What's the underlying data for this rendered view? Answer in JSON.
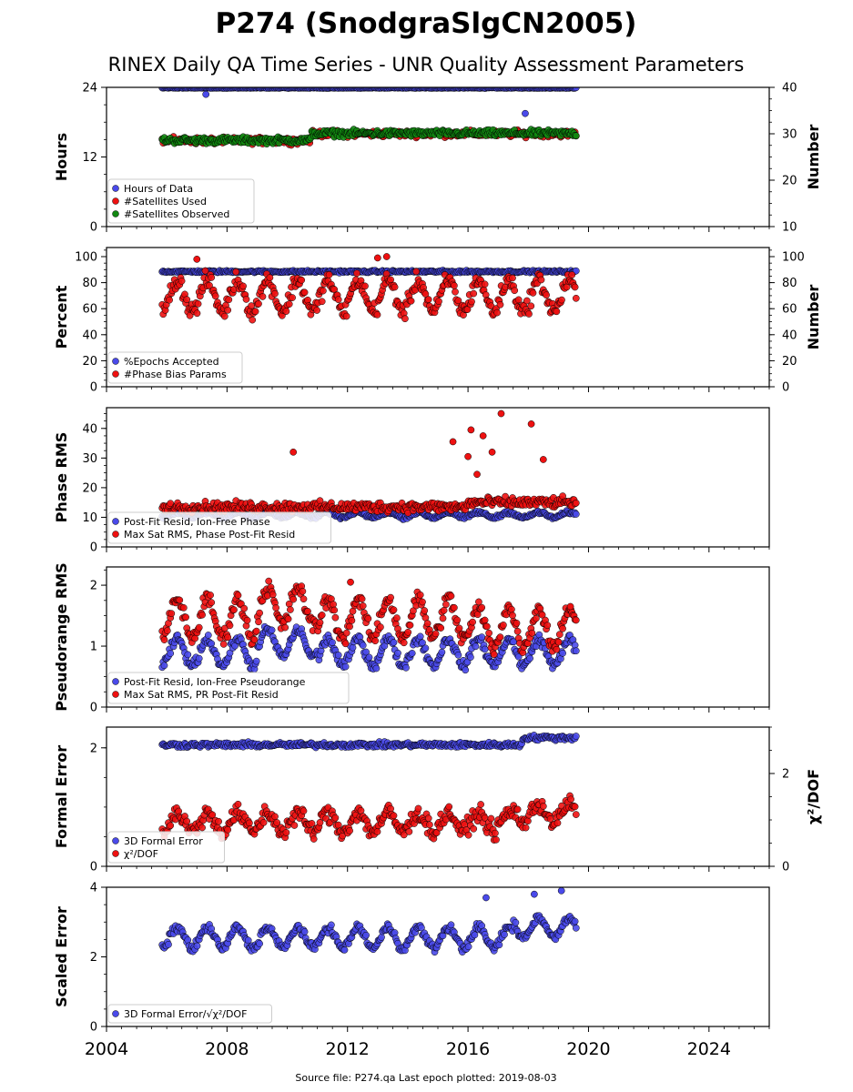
{
  "title": "P274 (SnodgraSlgCN2005)",
  "subtitle": "RINEX Daily QA Time Series - UNR Quality Assessment Parameters",
  "footer": "Source file: P274.qa Last epoch plotted: 2019-08-03",
  "chart_data": [
    {
      "type": "scatter",
      "ylabel": "Hours",
      "ylim": [
        0,
        24
      ],
      "yticks": [
        0,
        12,
        24
      ],
      "y2label": "Number",
      "y2lim": [
        10,
        40
      ],
      "y2ticks": [
        10,
        20,
        30,
        40
      ],
      "legend": "lower-left",
      "series": [
        {
          "name": "Hours of Data",
          "color": "#4a4aea",
          "axis": "left",
          "model": "hours",
          "outliers": [
            [
              2007.3,
              22.8
            ],
            [
              2017.9,
              19.5
            ]
          ]
        },
        {
          "name": "#Satellites Used",
          "color": "#ee1111",
          "axis": "right",
          "model": "satused"
        },
        {
          "name": "#Satellites Observed",
          "color": "#118811",
          "axis": "right",
          "model": "satobs"
        }
      ]
    },
    {
      "type": "scatter",
      "ylabel": "Percent",
      "ylim": [
        0,
        107
      ],
      "yticks": [
        0,
        20,
        40,
        60,
        80,
        100
      ],
      "y2label": "Number",
      "y2lim": [
        0,
        107
      ],
      "y2ticks": [
        0,
        20,
        40,
        60,
        80,
        100
      ],
      "legend": "lower-left",
      "series": [
        {
          "name": "%Epochs Accepted",
          "color": "#4a4aea",
          "axis": "left",
          "model": "epochs"
        },
        {
          "name": "#Phase Bias Params",
          "color": "#ee1111",
          "axis": "right",
          "model": "bias",
          "outliers": [
            [
              2007.0,
              98
            ],
            [
              2013.0,
              99
            ],
            [
              2013.3,
              100
            ]
          ]
        }
      ]
    },
    {
      "type": "scatter",
      "ylabel": "Phase RMS",
      "ylim": [
        0,
        47
      ],
      "yticks": [
        0,
        10,
        20,
        30,
        40
      ],
      "legend": "lower-left",
      "series": [
        {
          "name": "Post-Fit Resid, Ion-Free Phase",
          "color": "#4a4aea",
          "axis": "left",
          "model": "phase"
        },
        {
          "name": "Max Sat RMS, Phase Post-Fit Resid",
          "color": "#ee1111",
          "axis": "left",
          "model": "phasemax",
          "outliers": [
            [
              2010.2,
              32
            ],
            [
              2015.5,
              35.5
            ],
            [
              2016.1,
              39.5
            ],
            [
              2016.5,
              37.5
            ],
            [
              2016.8,
              32
            ],
            [
              2017.1,
              45
            ],
            [
              2018.1,
              41.5
            ],
            [
              2018.5,
              29.5
            ],
            [
              2016.0,
              30.5
            ],
            [
              2016.3,
              24.5
            ]
          ]
        }
      ]
    },
    {
      "type": "scatter",
      "ylabel": "Pseudorange RMS",
      "ylim": [
        0,
        2.3
      ],
      "yticks": [
        0,
        1,
        2
      ],
      "legend": "lower-left",
      "series": [
        {
          "name": "Post-Fit Resid, Ion-Free Pseudorange",
          "color": "#4a4aea",
          "axis": "left",
          "model": "pr"
        },
        {
          "name": "Max Sat RMS, PR Post-Fit Resid",
          "color": "#ee1111",
          "axis": "left",
          "model": "prmax",
          "outliers": [
            [
              2019.4,
              1.65
            ],
            [
              2012.1,
              2.05
            ]
          ]
        }
      ]
    },
    {
      "type": "scatter",
      "ylabel": "Formal Error",
      "ylim": [
        0,
        2.35
      ],
      "yticks": [
        0,
        2
      ],
      "y2label": "χ²/DOF",
      "y2lim": [
        0,
        3.0
      ],
      "y2ticks": [
        0,
        2
      ],
      "legend": "lower-left",
      "series": [
        {
          "name": "3D Formal Error",
          "color": "#4a4aea",
          "axis": "left",
          "model": "formal"
        },
        {
          "name": "χ²/DOF",
          "color": "#ee1111",
          "axis": "right",
          "model": "chi"
        }
      ]
    },
    {
      "type": "scatter",
      "ylabel": "Scaled Error",
      "ylim": [
        0,
        4
      ],
      "yticks": [
        0,
        2,
        4
      ],
      "legend": "lower-left",
      "series": [
        {
          "name": "3D Formal Error/√χ²/DOF",
          "color": "#4a4aea",
          "axis": "left",
          "model": "scaled",
          "outliers": [
            [
              2016.6,
              3.7
            ],
            [
              2018.2,
              3.8
            ],
            [
              2019.1,
              3.9
            ]
          ]
        }
      ]
    }
  ],
  "x_axis": {
    "xlim": [
      2004,
      2026
    ],
    "ticks": [
      2004,
      2008,
      2012,
      2016,
      2020,
      2024
    ],
    "data_range": [
      2005.85,
      2019.59
    ]
  }
}
